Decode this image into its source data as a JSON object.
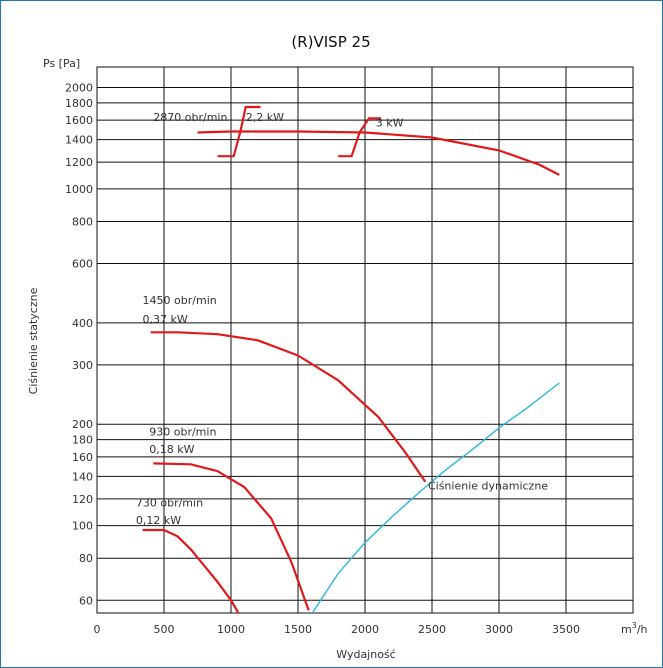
{
  "chart_data": {
    "type": "line",
    "title": "(R)VISP 25",
    "xlabel": "Wydajność",
    "ylabel": "Ciśnienie statyczne",
    "x_unit_prefix": "m",
    "x_unit_exp": "3",
    "x_unit_suffix": "/h",
    "y_unit": "Ps [Pa]",
    "y_scale": "log",
    "xlim": [
      0,
      4000
    ],
    "ylim": [
      55,
      2300
    ],
    "x_ticks": [
      0,
      500,
      1000,
      1500,
      2000,
      2500,
      3000,
      3500
    ],
    "y_ticks": [
      60,
      80,
      100,
      120,
      140,
      160,
      180,
      200,
      300,
      400,
      600,
      800,
      1000,
      1200,
      1400,
      1600,
      1800,
      2000
    ],
    "grid": true,
    "series": [
      {
        "name": "2870 obr/min",
        "power": "2,2 kW",
        "color": "#e0191b",
        "x": [
          750,
          1000,
          1500,
          2000,
          2500,
          3000,
          3300,
          3450
        ],
        "y": [
          1470,
          1480,
          1480,
          1470,
          1420,
          1300,
          1180,
          1100
        ]
      },
      {
        "name": "1450 obr/min",
        "power": "0,37 kW",
        "color": "#e0191b",
        "x": [
          400,
          600,
          900,
          1200,
          1500,
          1800,
          2100,
          2300,
          2450
        ],
        "y": [
          375,
          375,
          370,
          355,
          320,
          270,
          210,
          165,
          135
        ]
      },
      {
        "name": "930 obr/min",
        "power": "0,18 kW",
        "color": "#e0191b",
        "x": [
          420,
          700,
          900,
          1100,
          1300,
          1450,
          1580
        ],
        "y": [
          153,
          152,
          145,
          130,
          105,
          78,
          56
        ]
      },
      {
        "name": "730 obr/min",
        "power": "0,12 kW",
        "color": "#e0191b",
        "x": [
          340,
          500,
          600,
          700,
          800,
          900,
          1000,
          1080
        ],
        "y": [
          97,
          97,
          93,
          85,
          76,
          68,
          60,
          53
        ]
      },
      {
        "name": "Ciśnienie dynamiczne",
        "color": "#2ab8dc",
        "x": [
          1580,
          1800,
          2000,
          2200,
          2400,
          2600,
          2800,
          3000,
          3200,
          3450
        ],
        "y": [
          53,
          72,
          89,
          106,
          125,
          146,
          168,
          195,
          222,
          265
        ]
      }
    ],
    "motor_markers": [
      {
        "label": "2,2 kW",
        "x": [
          900,
          1020,
          1070,
          1110,
          1220
        ],
        "y": [
          1250,
          1250,
          1480,
          1750,
          1750
        ]
      },
      {
        "label": "3 kW",
        "x": [
          1800,
          1900,
          1960,
          2030,
          2120
        ],
        "y": [
          1250,
          1250,
          1470,
          1620,
          1620
        ]
      }
    ],
    "annotations": [
      {
        "id": "l2870a",
        "text": "2870 obr/min",
        "x": 420,
        "y": 1590
      },
      {
        "id": "l2870b",
        "text": "2,2 kW",
        "x": 1110,
        "y": 1590
      },
      {
        "id": "l3kw",
        "text": "3 kW",
        "x": 2080,
        "y": 1530
      },
      {
        "id": "l1450a",
        "text": "1450 obr/min",
        "x": 340,
        "y": 455
      },
      {
        "id": "l1450b",
        "text": "0,37 kW",
        "x": 340,
        "y": 400
      },
      {
        "id": "l930a",
        "text": "930 obr/min",
        "x": 390,
        "y": 185
      },
      {
        "id": "l930b",
        "text": "0,18 kW",
        "x": 390,
        "y": 164
      },
      {
        "id": "l730a",
        "text": "730 obr/min",
        "x": 290,
        "y": 114
      },
      {
        "id": "l730b",
        "text": "0,12 kW",
        "x": 290,
        "y": 101
      },
      {
        "id": "ldyn",
        "text": "Ciśnienie dynamiczne",
        "x": 2470,
        "y": 128
      }
    ]
  }
}
